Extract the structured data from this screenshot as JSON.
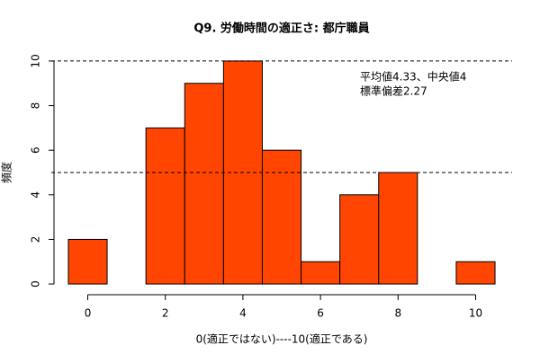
{
  "chart_data": {
    "type": "histogram",
    "title": "Q9. 労働時間の適正さ: 都庁職員",
    "xlabel": "0(適正ではない)----10(適正である)",
    "ylabel": "頻度",
    "bins": [
      -0.5,
      0.5,
      1.5,
      2.5,
      3.5,
      4.5,
      5.5,
      6.5,
      7.5,
      8.5,
      9.5,
      10.5
    ],
    "values": [
      2,
      0,
      7,
      9,
      10,
      6,
      1,
      4,
      5,
      0,
      1
    ],
    "color": "#ff4500",
    "xlim": [
      -0.94,
      10.94
    ],
    "xticks": [
      0,
      2,
      4,
      6,
      8,
      10
    ],
    "ylim": [
      -0.4,
      10.4
    ],
    "yticks": [
      0,
      2,
      4,
      6,
      8,
      10
    ],
    "hlines": [
      5,
      10
    ],
    "annotations": [
      "平均値4.33、中央値4",
      "標準偏差2.27"
    ]
  }
}
